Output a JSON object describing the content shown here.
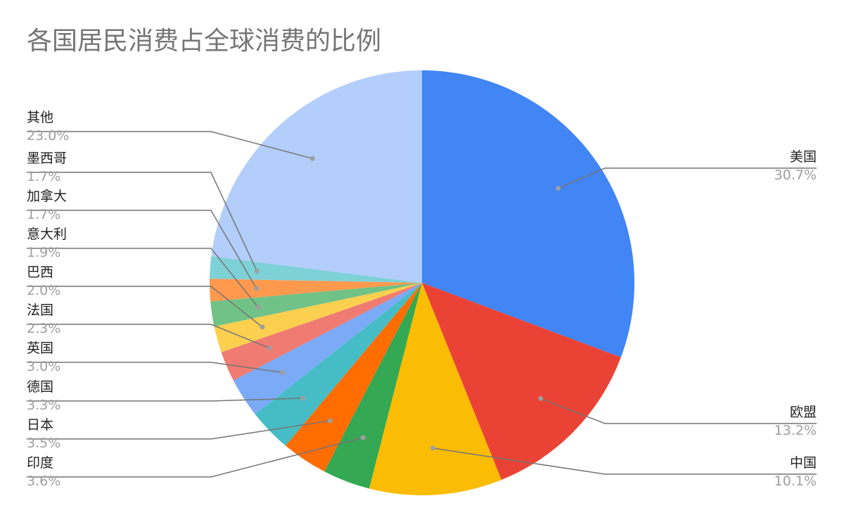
{
  "chart_data": {
    "type": "pie",
    "title": "各国居民消费占全球消费的比例",
    "start_angle_deg": 0,
    "direction": "clockwise",
    "slices": [
      {
        "label": "美国",
        "value": 30.7,
        "pct_text": "30.7%",
        "color": "#4285F4"
      },
      {
        "label": "欧盟",
        "value": 13.2,
        "pct_text": "13.2%",
        "color": "#EA4335"
      },
      {
        "label": "中国",
        "value": 10.1,
        "pct_text": "10.1%",
        "color": "#FBBC04"
      },
      {
        "label": "印度",
        "value": 3.6,
        "pct_text": "3.6%",
        "color": "#34A853"
      },
      {
        "label": "日本",
        "value": 3.5,
        "pct_text": "3.5%",
        "color": "#FF6D01"
      },
      {
        "label": "德国",
        "value": 3.3,
        "pct_text": "3.3%",
        "color": "#46BDC6"
      },
      {
        "label": "英国",
        "value": 3.0,
        "pct_text": "3.0%",
        "color": "#7BAAF7"
      },
      {
        "label": "法国",
        "value": 2.3,
        "pct_text": "2.3%",
        "color": "#F07B72"
      },
      {
        "label": "巴西",
        "value": 2.0,
        "pct_text": "2.0%",
        "color": "#FCD04F"
      },
      {
        "label": "意大利",
        "value": 1.9,
        "pct_text": "1.9%",
        "color": "#71C287"
      },
      {
        "label": "加拿大",
        "value": 1.7,
        "pct_text": "1.7%",
        "color": "#FF994D"
      },
      {
        "label": "墨西哥",
        "value": 1.7,
        "pct_text": "1.7%",
        "color": "#7ED1D7"
      },
      {
        "label": "其他",
        "value": 23.0,
        "pct_text": "23.0%",
        "color": "#B3CEFB"
      }
    ]
  }
}
